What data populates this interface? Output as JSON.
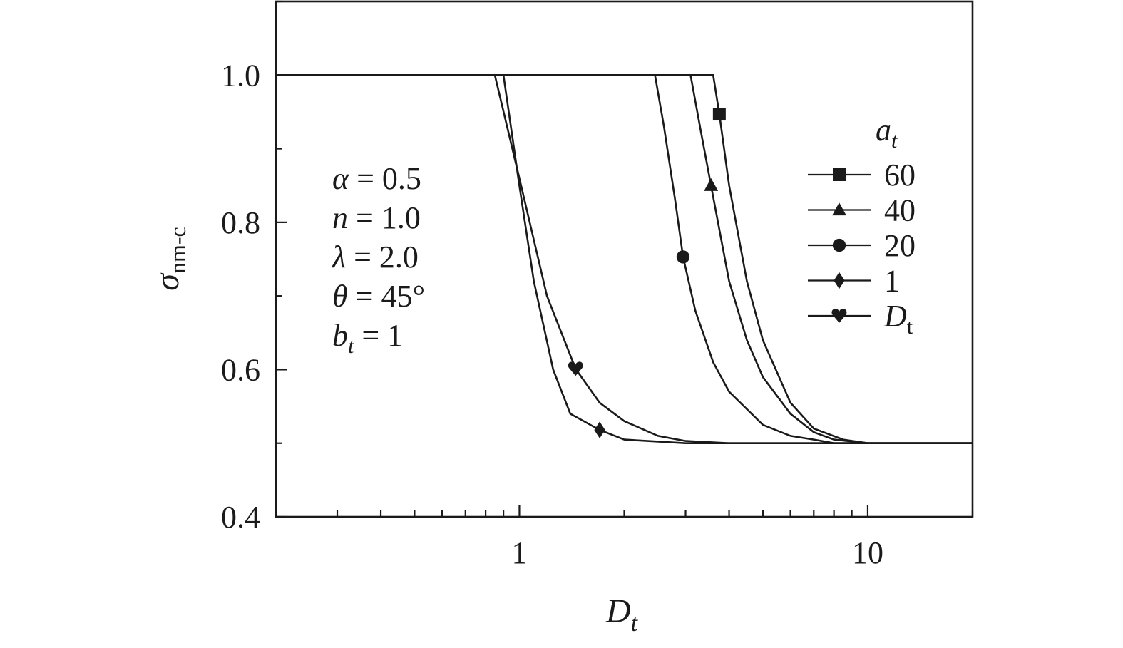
{
  "chart_data": {
    "type": "line",
    "title": "",
    "x_axis": {
      "label": "D",
      "label_sub": "t",
      "scale": "log",
      "range": [
        0.2,
        20
      ],
      "tick_labels": [
        {
          "value": 1,
          "text": "1"
        },
        {
          "value": 10,
          "text": "10"
        }
      ]
    },
    "y_axis": {
      "label": "σ",
      "label_sub": "nm-c",
      "range": [
        0.4,
        1.1
      ],
      "tick_labels": [
        {
          "value": 0.4,
          "text": "0.4"
        },
        {
          "value": 0.6,
          "text": "0.6"
        },
        {
          "value": 0.8,
          "text": "0.8"
        },
        {
          "value": 1.0,
          "text": "1.0"
        }
      ]
    },
    "parameters": [
      {
        "sym": "α",
        "sub": "",
        "rest": " = 0.5"
      },
      {
        "sym": "n",
        "sub": "",
        "rest": " = 1.0"
      },
      {
        "sym": "λ",
        "sub": "",
        "rest": " = 2.0"
      },
      {
        "sym": "θ",
        "sub": "",
        "rest": " = 45°"
      },
      {
        "sym": "b",
        "sub": "t",
        "rest": " = 1"
      }
    ],
    "legend": {
      "title": "a",
      "title_sub": "t",
      "placement": "right",
      "entries": [
        {
          "label": "60",
          "sub": "",
          "marker": "square"
        },
        {
          "label": "40",
          "sub": "",
          "marker": "triangle"
        },
        {
          "label": "20",
          "sub": "",
          "marker": "circle"
        },
        {
          "label": "1",
          "sub": "",
          "marker": "diamond"
        },
        {
          "label": "D",
          "sub": "t",
          "marker": "heart"
        }
      ]
    },
    "series": [
      {
        "name": "60",
        "marker": "square",
        "marker_at": [
          3.75,
          0.947
        ],
        "points": [
          [
            0.2,
            1.0
          ],
          [
            3.6,
            1.0
          ],
          [
            3.75,
            0.947
          ],
          [
            4.0,
            0.85
          ],
          [
            4.5,
            0.72
          ],
          [
            5.0,
            0.64
          ],
          [
            6.0,
            0.555
          ],
          [
            7.0,
            0.52
          ],
          [
            8.5,
            0.505
          ],
          [
            10.0,
            0.5
          ],
          [
            20.0,
            0.5
          ]
        ]
      },
      {
        "name": "40",
        "marker": "triangle",
        "marker_at": [
          3.55,
          0.85
        ],
        "points": [
          [
            0.2,
            1.0
          ],
          [
            3.1,
            1.0
          ],
          [
            3.3,
            0.93
          ],
          [
            3.55,
            0.85
          ],
          [
            4.0,
            0.72
          ],
          [
            4.5,
            0.64
          ],
          [
            5.0,
            0.59
          ],
          [
            6.0,
            0.54
          ],
          [
            7.0,
            0.515
          ],
          [
            8.0,
            0.505
          ],
          [
            10.0,
            0.5
          ],
          [
            20.0,
            0.5
          ]
        ]
      },
      {
        "name": "20",
        "marker": "circle",
        "marker_at": [
          2.95,
          0.753
        ],
        "points": [
          [
            0.2,
            1.0
          ],
          [
            2.45,
            1.0
          ],
          [
            2.6,
            0.93
          ],
          [
            2.8,
            0.83
          ],
          [
            2.95,
            0.753
          ],
          [
            3.2,
            0.68
          ],
          [
            3.6,
            0.61
          ],
          [
            4.0,
            0.57
          ],
          [
            5.0,
            0.525
          ],
          [
            6.0,
            0.51
          ],
          [
            7.0,
            0.505
          ],
          [
            8.0,
            0.5
          ],
          [
            20.0,
            0.5
          ]
        ]
      },
      {
        "name": "1",
        "marker": "diamond",
        "marker_at": [
          1.7,
          0.518
        ],
        "points": [
          [
            0.2,
            1.0
          ],
          [
            0.9,
            1.0
          ],
          [
            1.0,
            0.85
          ],
          [
            1.1,
            0.72
          ],
          [
            1.25,
            0.6
          ],
          [
            1.4,
            0.54
          ],
          [
            1.7,
            0.518
          ],
          [
            2.0,
            0.505
          ],
          [
            3.0,
            0.5
          ],
          [
            20.0,
            0.5
          ]
        ]
      },
      {
        "name": "D_t",
        "marker": "heart",
        "marker_at": [
          1.45,
          0.601
        ],
        "points": [
          [
            0.2,
            1.0
          ],
          [
            0.85,
            1.0
          ],
          [
            1.0,
            0.86
          ],
          [
            1.2,
            0.7
          ],
          [
            1.45,
            0.601
          ],
          [
            1.7,
            0.555
          ],
          [
            2.0,
            0.53
          ],
          [
            2.5,
            0.51
          ],
          [
            3.0,
            0.503
          ],
          [
            4.0,
            0.5
          ],
          [
            20.0,
            0.5
          ]
        ]
      }
    ]
  }
}
